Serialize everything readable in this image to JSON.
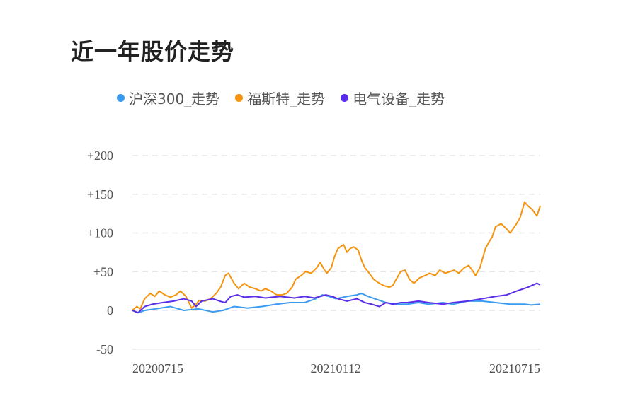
{
  "chart_data": {
    "type": "line",
    "title": "近一年股价走势",
    "xlabel": "",
    "ylabel": "",
    "ylim": [
      -50,
      200
    ],
    "yticks": [
      -50,
      0,
      50,
      100,
      150,
      200
    ],
    "ytick_labels": [
      "-50",
      "0",
      "+50",
      "+100",
      "+150",
      "+200"
    ],
    "xlim": [
      0,
      365
    ],
    "xticks": [
      {
        "day": 0,
        "label": "20200715"
      },
      {
        "day": 182,
        "label": "20210112"
      },
      {
        "day": 365,
        "label": "20210715"
      }
    ],
    "grid": true,
    "legend_position": "top",
    "series": [
      {
        "name": "沪深300_走势",
        "color": "#3a9bf0",
        "points": [
          [
            0,
            0
          ],
          [
            5,
            -3
          ],
          [
            11,
            0
          ],
          [
            21,
            2
          ],
          [
            34,
            5
          ],
          [
            46,
            0
          ],
          [
            59,
            2
          ],
          [
            72,
            -2
          ],
          [
            81,
            0
          ],
          [
            91,
            5
          ],
          [
            103,
            3
          ],
          [
            116,
            5
          ],
          [
            129,
            8
          ],
          [
            141,
            10
          ],
          [
            154,
            10
          ],
          [
            164,
            15
          ],
          [
            170,
            20
          ],
          [
            176,
            18
          ],
          [
            182,
            15
          ],
          [
            192,
            18
          ],
          [
            201,
            20
          ],
          [
            205,
            22
          ],
          [
            211,
            18
          ],
          [
            217,
            15
          ],
          [
            227,
            10
          ],
          [
            236,
            8
          ],
          [
            246,
            8
          ],
          [
            256,
            10
          ],
          [
            265,
            8
          ],
          [
            278,
            10
          ],
          [
            287,
            8
          ],
          [
            300,
            12
          ],
          [
            313,
            12
          ],
          [
            325,
            10
          ],
          [
            338,
            8
          ],
          [
            351,
            8
          ],
          [
            357,
            7
          ],
          [
            365,
            8
          ]
        ]
      },
      {
        "name": "福斯特_走势",
        "color": "#f5930f",
        "points": [
          [
            0,
            0
          ],
          [
            4,
            5
          ],
          [
            7,
            2
          ],
          [
            11,
            15
          ],
          [
            16,
            22
          ],
          [
            20,
            18
          ],
          [
            24,
            25
          ],
          [
            29,
            20
          ],
          [
            34,
            17
          ],
          [
            39,
            20
          ],
          [
            43,
            25
          ],
          [
            48,
            18
          ],
          [
            53,
            3
          ],
          [
            57,
            8
          ],
          [
            60,
            13
          ],
          [
            65,
            12
          ],
          [
            70,
            15
          ],
          [
            75,
            22
          ],
          [
            79,
            30
          ],
          [
            83,
            45
          ],
          [
            86,
            48
          ],
          [
            91,
            35
          ],
          [
            95,
            28
          ],
          [
            100,
            35
          ],
          [
            105,
            30
          ],
          [
            110,
            28
          ],
          [
            115,
            25
          ],
          [
            119,
            28
          ],
          [
            124,
            25
          ],
          [
            129,
            20
          ],
          [
            134,
            20
          ],
          [
            138,
            22
          ],
          [
            143,
            30
          ],
          [
            146,
            40
          ],
          [
            151,
            45
          ],
          [
            155,
            50
          ],
          [
            160,
            48
          ],
          [
            165,
            55
          ],
          [
            168,
            62
          ],
          [
            172,
            52
          ],
          [
            174,
            48
          ],
          [
            178,
            55
          ],
          [
            181,
            70
          ],
          [
            184,
            80
          ],
          [
            189,
            85
          ],
          [
            192,
            75
          ],
          [
            195,
            80
          ],
          [
            198,
            82
          ],
          [
            202,
            78
          ],
          [
            205,
            65
          ],
          [
            208,
            55
          ],
          [
            211,
            50
          ],
          [
            216,
            40
          ],
          [
            221,
            35
          ],
          [
            225,
            32
          ],
          [
            230,
            30
          ],
          [
            233,
            32
          ],
          [
            236,
            40
          ],
          [
            240,
            50
          ],
          [
            244,
            52
          ],
          [
            248,
            40
          ],
          [
            252,
            35
          ],
          [
            257,
            42
          ],
          [
            262,
            45
          ],
          [
            266,
            48
          ],
          [
            271,
            45
          ],
          [
            275,
            52
          ],
          [
            280,
            48
          ],
          [
            284,
            50
          ],
          [
            288,
            52
          ],
          [
            292,
            48
          ],
          [
            297,
            55
          ],
          [
            301,
            58
          ],
          [
            305,
            50
          ],
          [
            307,
            45
          ],
          [
            311,
            55
          ],
          [
            316,
            80
          ],
          [
            319,
            88
          ],
          [
            322,
            95
          ],
          [
            325,
            108
          ],
          [
            330,
            112
          ],
          [
            335,
            105
          ],
          [
            338,
            100
          ],
          [
            343,
            110
          ],
          [
            347,
            120
          ],
          [
            351,
            140
          ],
          [
            354,
            135
          ],
          [
            358,
            130
          ],
          [
            362,
            122
          ],
          [
            365,
            135
          ]
        ]
      },
      {
        "name": "电气设备_走势",
        "color": "#5a2ee8",
        "points": [
          [
            0,
            0
          ],
          [
            5,
            -3
          ],
          [
            11,
            5
          ],
          [
            18,
            8
          ],
          [
            27,
            10
          ],
          [
            37,
            12
          ],
          [
            46,
            15
          ],
          [
            53,
            12
          ],
          [
            57,
            5
          ],
          [
            62,
            12
          ],
          [
            72,
            15
          ],
          [
            78,
            12
          ],
          [
            83,
            10
          ],
          [
            88,
            18
          ],
          [
            94,
            20
          ],
          [
            100,
            17
          ],
          [
            110,
            18
          ],
          [
            119,
            16
          ],
          [
            132,
            18
          ],
          [
            145,
            16
          ],
          [
            154,
            18
          ],
          [
            163,
            16
          ],
          [
            173,
            20
          ],
          [
            179,
            18
          ],
          [
            184,
            15
          ],
          [
            192,
            12
          ],
          [
            201,
            15
          ],
          [
            208,
            10
          ],
          [
            214,
            8
          ],
          [
            221,
            5
          ],
          [
            227,
            10
          ],
          [
            233,
            8
          ],
          [
            240,
            10
          ],
          [
            246,
            10
          ],
          [
            256,
            12
          ],
          [
            265,
            10
          ],
          [
            278,
            8
          ],
          [
            287,
            10
          ],
          [
            300,
            12
          ],
          [
            313,
            15
          ],
          [
            325,
            18
          ],
          [
            335,
            20
          ],
          [
            344,
            25
          ],
          [
            354,
            30
          ],
          [
            362,
            35
          ],
          [
            365,
            33
          ]
        ]
      }
    ]
  }
}
